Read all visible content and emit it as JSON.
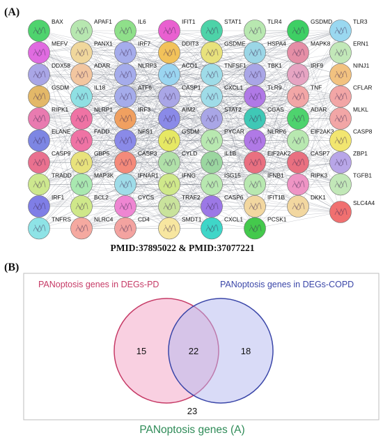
{
  "panel_a": {
    "label": "(A)",
    "caption": "PMID:37895022 & PMID:37077221",
    "columns": [
      [
        {
          "name": "BAX",
          "color": "#4fd36e"
        },
        {
          "name": "MEFV",
          "color": "#e06be0"
        },
        {
          "name": "DDX58",
          "color": "#a9a6e6"
        },
        {
          "name": "GSDM",
          "color": "#e3b868"
        },
        {
          "name": "RIPK1",
          "color": "#e97bb0"
        },
        {
          "name": "ELANE",
          "color": "#7d86e3"
        },
        {
          "name": "CASP9",
          "color": "#e9718f"
        },
        {
          "name": "TRADD",
          "color": "#cde88e"
        },
        {
          "name": "IRF1",
          "color": "#7f7ee6"
        },
        {
          "name": "TNFRS",
          "color": "#8ee3e6"
        }
      ],
      [
        {
          "name": "APAF1",
          "color": "#b7e7b0"
        },
        {
          "name": "PANX1",
          "color": "#f0d79c"
        },
        {
          "name": "ADAR",
          "color": "#f2c6a0"
        },
        {
          "name": "IL18",
          "color": "#8fe0e3"
        },
        {
          "name": "NLRP1",
          "color": "#ef73a4"
        },
        {
          "name": "FADD",
          "color": "#ef73a4"
        },
        {
          "name": "GBP5",
          "color": "#e8e27c"
        },
        {
          "name": "MAP3K",
          "color": "#a9e8b0"
        },
        {
          "name": "BCL2",
          "color": "#cfe88a"
        },
        {
          "name": "NLRC4",
          "color": "#f5a9a0"
        }
      ],
      [
        {
          "name": "IL6",
          "color": "#8fe08a"
        },
        {
          "name": "IRF7",
          "color": "#a5aceb"
        },
        {
          "name": "NLRP3",
          "color": "#a5aceb"
        },
        {
          "name": "ATF6",
          "color": "#a5aceb"
        },
        {
          "name": "IRF3",
          "color": "#f0a060"
        },
        {
          "name": "NFS1",
          "color": "#8a8ae8"
        },
        {
          "name": "CASP3",
          "color": "#f48a7a"
        },
        {
          "name": "IFNAR1",
          "color": "#9fdce8"
        },
        {
          "name": "CYCS",
          "color": "#ee86d2"
        },
        {
          "name": "CD4",
          "color": "#f3a3a0"
        }
      ],
      [
        {
          "name": "IFIT1",
          "color": "#e960d0"
        },
        {
          "name": "DDIT3",
          "color": "#f2c25a"
        },
        {
          "name": "ACO1",
          "color": "#9ad5f0"
        },
        {
          "name": "CASP1",
          "color": "#a9a6e6"
        },
        {
          "name": "AIM2",
          "color": "#8a8ae8"
        },
        {
          "name": "GSDM",
          "color": "#e6e864"
        },
        {
          "name": "CYLD",
          "color": "#b0e0a8"
        },
        {
          "name": "IFNG",
          "color": "#cfe88a"
        },
        {
          "name": "TRAF2",
          "color": "#c9e39c"
        },
        {
          "name": "SMDT1",
          "color": "#f7e6a0"
        }
      ],
      [
        {
          "name": "STAT1",
          "color": "#4dd3a8"
        },
        {
          "name": "GSDME",
          "color": "#e8e27c"
        },
        {
          "name": "TNFSF1",
          "color": "#9fdce8"
        },
        {
          "name": "CXCL1",
          "color": "#9fdce8"
        },
        {
          "name": "STAT2",
          "color": "#a9a6e6"
        },
        {
          "name": "PYCAR",
          "color": "#b8e8b0"
        },
        {
          "name": "IL1B",
          "color": "#9bd6a0"
        },
        {
          "name": "ISG15",
          "color": "#b8e8b0"
        },
        {
          "name": "CASP6",
          "color": "#9c78e6"
        },
        {
          "name": "CXCL1",
          "color": "#3fd6c8"
        }
      ],
      [
        {
          "name": "TLR4",
          "color": "#b8e8b0"
        },
        {
          "name": "HSPA4",
          "color": "#9bd6e6"
        },
        {
          "name": "TBK1",
          "color": "#a9a6e6"
        },
        {
          "name": "TLR9",
          "color": "#b079e6"
        },
        {
          "name": "CGAS",
          "color": "#3fc8b6"
        },
        {
          "name": "NLRP6",
          "color": "#b079e6"
        },
        {
          "name": "EIF2AK2",
          "color": "#e97080"
        },
        {
          "name": "IFNB1",
          "color": "#b8e8b0"
        },
        {
          "name": "IFIT1B",
          "color": "#f2d7a0"
        },
        {
          "name": "PCSK1",
          "color": "#44c94c"
        }
      ],
      [
        {
          "name": "GSDMD",
          "color": "#3ecf64"
        },
        {
          "name": "MAPK8",
          "color": "#e58ea6"
        },
        {
          "name": "IRF9",
          "color": "#e6a4c2"
        },
        {
          "name": "TNF",
          "color": "#f2a6a6"
        },
        {
          "name": "ADAR",
          "color": "#4ed36e"
        },
        {
          "name": "EIF2AK3",
          "color": "#b8e8b0"
        },
        {
          "name": "CASP7",
          "color": "#e97080"
        },
        {
          "name": "RIPK3",
          "color": "#ee94c4"
        },
        {
          "name": "DKK1",
          "color": "#f2d7a0"
        }
      ],
      [
        {
          "name": "TLR3",
          "color": "#9ad8f0"
        },
        {
          "name": "ERN1",
          "color": "#c2e8b8"
        },
        {
          "name": "NINJ1",
          "color": "#f2c280"
        },
        {
          "name": "CFLAR",
          "color": "#f2a6a6"
        },
        {
          "name": "MLKL",
          "color": "#f2a6a6"
        },
        {
          "name": "CASP8",
          "color": "#f2e670"
        },
        {
          "name": "ZBP1",
          "color": "#b8a6e8"
        },
        {
          "name": "TGFB1",
          "color": "#c2e8b8"
        },
        {
          "name": "SLC4A4",
          "color": "#f07070"
        }
      ]
    ]
  },
  "panel_b": {
    "label": "(B)",
    "left_set": {
      "title": "PANoptosis genes in DEGs-PD",
      "only": "15",
      "color": "#c63a66",
      "fill": "#f4a9c8"
    },
    "right_set": {
      "title": "PANoptosis genes in DEGs-COPD",
      "only": "18",
      "color": "#3a46a8",
      "fill": "#b4b8f0"
    },
    "intersection": "22",
    "outside": "23",
    "universe_title": "PANoptosis genes (A)",
    "universe_color": "#2e8b57"
  }
}
